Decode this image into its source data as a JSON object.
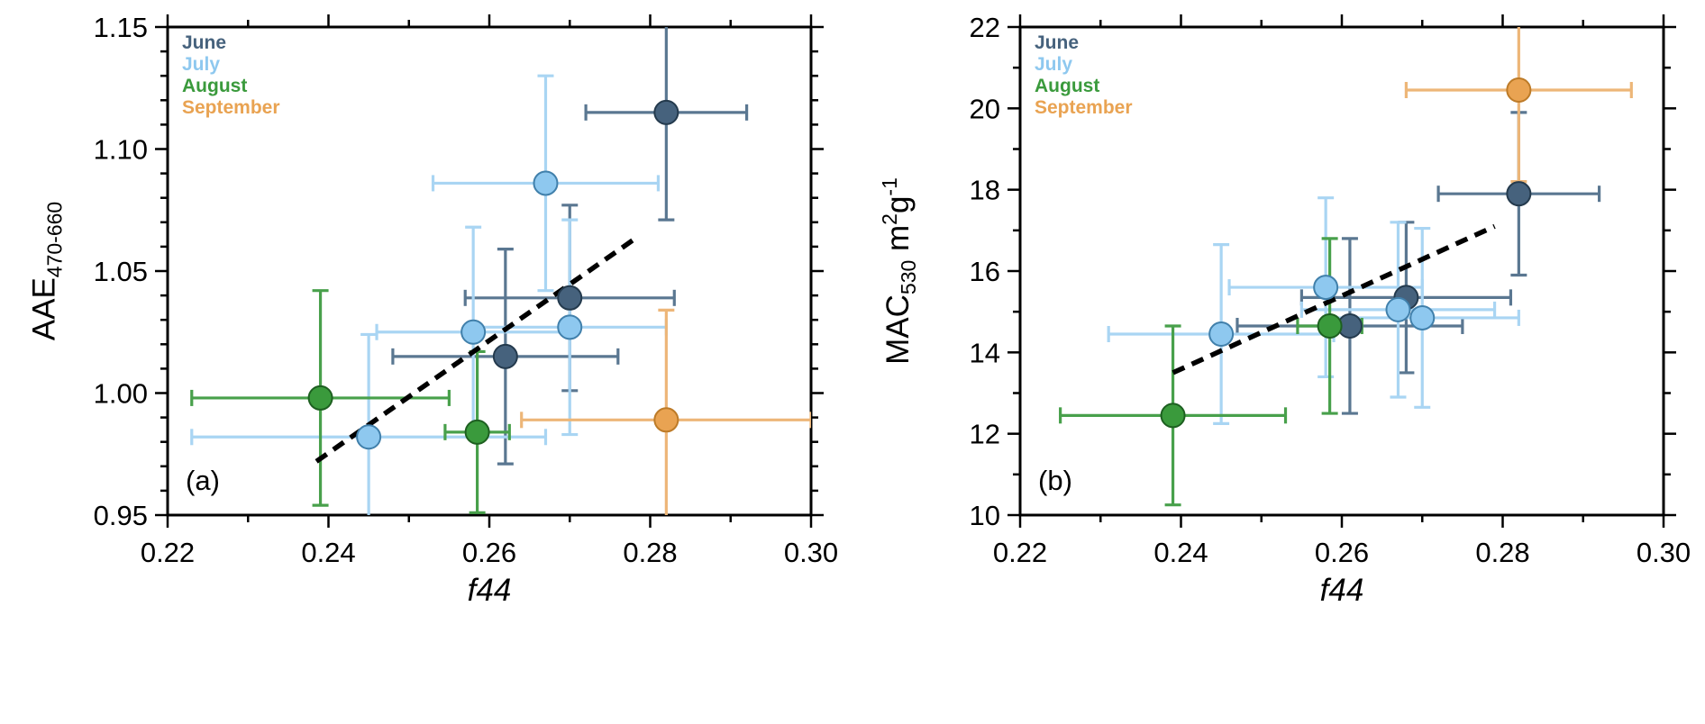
{
  "chart_data": [
    {
      "type": "scatter",
      "panel_label": "(a)",
      "xlabel": "f44",
      "ylabel": {
        "main": "AAE",
        "sub": "470-660"
      },
      "xlim": [
        0.22,
        0.3
      ],
      "ylim": [
        0.95,
        1.15
      ],
      "xticks": [
        0.22,
        0.24,
        0.26,
        0.28,
        0.3
      ],
      "xtick_labels": [
        "0.22",
        "0.24",
        "0.26",
        "0.28",
        "0.30"
      ],
      "yticks": [
        0.95,
        1.0,
        1.05,
        1.1,
        1.15
      ],
      "ytick_labels": [
        "0.95",
        "1.00",
        "1.05",
        "1.10",
        "1.15"
      ],
      "x_minor_step": 0.01,
      "y_minor_step": 0.01,
      "grid": false,
      "legend_position": "top-left",
      "trend": {
        "style": "dashed",
        "color": "#000000",
        "x1": 0.2385,
        "y1": 0.972,
        "x2": 0.278,
        "y2": 1.063
      },
      "series": [
        {
          "name": "June",
          "color": "#46627d",
          "edge": "#243a4d",
          "bar_color": "#5a7791",
          "points": [
            [
              0.282,
              1.115,
              0.01,
              0.044
            ],
            [
              0.27,
              1.039,
              0.013,
              0.038
            ],
            [
              0.262,
              1.015,
              0.014,
              0.044
            ]
          ]
        },
        {
          "name": "July",
          "color": "#8ec8ef",
          "edge": "#4180ab",
          "bar_color": "#a9d5f3",
          "points": [
            [
              0.267,
              1.086,
              0.014,
              0.044
            ],
            [
              0.258,
              1.025,
              0.012,
              0.043
            ],
            [
              0.27,
              1.027,
              0.012,
              0.044
            ],
            [
              0.245,
              0.982,
              0.022,
              0.042
            ]
          ]
        },
        {
          "name": "August",
          "color": "#3a9a3c",
          "edge": "#1d5f20",
          "bar_color": "#48a04b",
          "points": [
            [
              0.239,
              0.998,
              0.016,
              0.044
            ],
            [
              0.2585,
              0.984,
              0.004,
              0.033
            ]
          ]
        },
        {
          "name": "September",
          "color": "#e9a352",
          "edge": "#bd7b28",
          "bar_color": "#edb678",
          "points": [
            [
              0.282,
              0.989,
              0.018,
              0.045
            ]
          ]
        }
      ]
    },
    {
      "type": "scatter",
      "panel_label": "(b)",
      "xlabel": "f44",
      "ylabel": {
        "main": "MAC",
        "sub": "530",
        "unit_a": " m",
        "sup_a": "2",
        "unit_b": "g",
        "sup_b": "-1"
      },
      "xlim": [
        0.22,
        0.3
      ],
      "ylim": [
        10,
        22
      ],
      "xticks": [
        0.22,
        0.24,
        0.26,
        0.28,
        0.3
      ],
      "xtick_labels": [
        "0.22",
        "0.24",
        "0.26",
        "0.28",
        "0.30"
      ],
      "yticks": [
        10,
        12,
        14,
        16,
        18,
        20,
        22
      ],
      "ytick_labels": [
        "10",
        "12",
        "14",
        "16",
        "18",
        "20",
        "22"
      ],
      "x_minor_step": 0.01,
      "y_minor_step": 1,
      "grid": false,
      "legend_position": "top-left",
      "trend": {
        "style": "dashed",
        "color": "#000000",
        "x1": 0.239,
        "y1": 13.5,
        "x2": 0.279,
        "y2": 17.1
      },
      "series": [
        {
          "name": "June",
          "color": "#46627d",
          "edge": "#243a4d",
          "bar_color": "#5a7791",
          "points": [
            [
              0.282,
              17.9,
              0.01,
              2.0
            ],
            [
              0.268,
              15.35,
              0.013,
              1.85
            ],
            [
              0.261,
              14.65,
              0.014,
              2.15
            ]
          ]
        },
        {
          "name": "July",
          "color": "#8ec8ef",
          "edge": "#4180ab",
          "bar_color": "#a9d5f3",
          "points": [
            [
              0.245,
              14.45,
              0.014,
              2.2
            ],
            [
              0.258,
              15.6,
              0.012,
              2.2
            ],
            [
              0.267,
              15.05,
              0.012,
              2.15
            ],
            [
              0.27,
              14.85,
              0.012,
              2.2
            ]
          ]
        },
        {
          "name": "August",
          "color": "#3a9a3c",
          "edge": "#1d5f20",
          "bar_color": "#48a04b",
          "points": [
            [
              0.239,
              12.45,
              0.014,
              2.2
            ],
            [
              0.2585,
              14.65,
              0.004,
              2.15
            ]
          ]
        },
        {
          "name": "September",
          "color": "#e9a352",
          "edge": "#bd7b28",
          "bar_color": "#edb678",
          "points": [
            [
              0.282,
              20.45,
              0.014,
              2.25
            ]
          ]
        }
      ]
    }
  ]
}
